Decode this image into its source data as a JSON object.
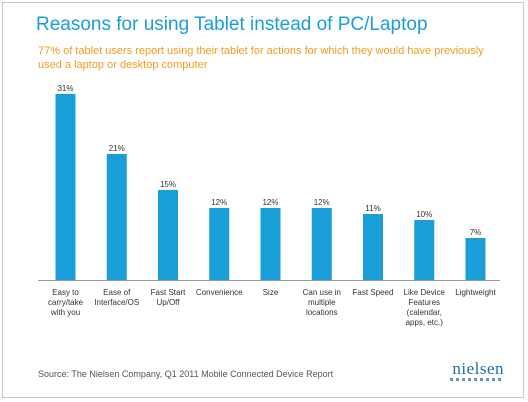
{
  "chart_data": {
    "type": "bar",
    "title": "Reasons for using Tablet instead of PC/Laptop",
    "subtitle": "77% of tablet users report using their tablet for actions for which they would have previously used a laptop or desktop computer",
    "categories": [
      [
        "Easy to",
        "carry/take",
        "with you"
      ],
      [
        "Ease of",
        "Interface/OS"
      ],
      [
        "Fast Start",
        "Up/Off"
      ],
      [
        "Convenience"
      ],
      [
        "Size"
      ],
      [
        "Can use in",
        "multiple",
        "locations"
      ],
      [
        "Fast Speed"
      ],
      [
        "Like Device",
        "Features",
        "(calendar,",
        "apps, etc.)"
      ],
      [
        "Lightweight"
      ]
    ],
    "values": [
      31,
      21,
      15,
      12,
      12,
      12,
      11,
      10,
      7
    ],
    "data_labels": [
      "31%",
      "21%",
      "15%",
      "12%",
      "12%",
      "12%",
      "11%",
      "10%",
      "7%"
    ],
    "ylim": [
      0,
      31
    ],
    "grid": false,
    "bar_color": "#1a9ed8"
  },
  "footer": {
    "source": "Source: The Nielsen Company, Q1 2011 Mobile Connected Device Report",
    "logo_text": "nielsen"
  }
}
